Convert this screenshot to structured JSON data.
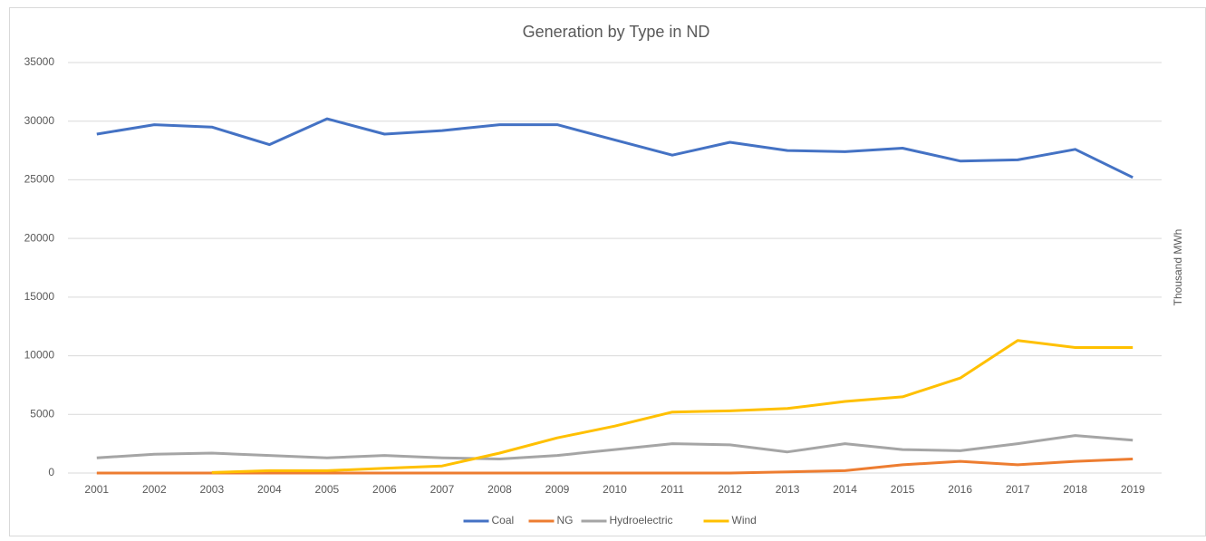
{
  "chart_data": {
    "type": "line",
    "title": "Generation by Type in ND",
    "y_label": "Thousand MWh",
    "categories": [
      "2001",
      "2002",
      "2003",
      "2004",
      "2005",
      "2006",
      "2007",
      "2008",
      "2009",
      "2010",
      "2011",
      "2012",
      "2013",
      "2014",
      "2015",
      "2016",
      "2017",
      "2018",
      "2019"
    ],
    "series": [
      {
        "name": "Coal",
        "color": "#4472c4",
        "values": [
          28900,
          29700,
          29500,
          28000,
          30200,
          28900,
          29200,
          29700,
          29700,
          28400,
          27100,
          28200,
          27500,
          27400,
          27700,
          26600,
          26700,
          27600,
          25200
        ]
      },
      {
        "name": "NG",
        "color": "#ed7d31",
        "values": [
          0,
          0,
          0,
          0,
          0,
          0,
          0,
          0,
          0,
          0,
          0,
          0,
          100,
          200,
          700,
          1000,
          700,
          1000,
          1200
        ]
      },
      {
        "name": "Hydroelectric",
        "color": "#a5a5a5",
        "values": [
          1300,
          1600,
          1700,
          1500,
          1300,
          1500,
          1300,
          1200,
          1500,
          2000,
          2500,
          2400,
          1800,
          2500,
          2000,
          1900,
          2500,
          3200,
          2800
        ]
      },
      {
        "name": "Wind",
        "color": "#ffc000",
        "values": [
          null,
          null,
          50,
          200,
          200,
          400,
          600,
          1700,
          3000,
          4000,
          5200,
          5300,
          5500,
          6100,
          6500,
          8100,
          11300,
          10700,
          10700
        ]
      }
    ],
    "ylim": [
      0,
      35000
    ],
    "yticks": [
      0,
      5000,
      10000,
      15000,
      20000,
      25000,
      30000,
      35000
    ],
    "grid": true,
    "legend": "bottom"
  }
}
